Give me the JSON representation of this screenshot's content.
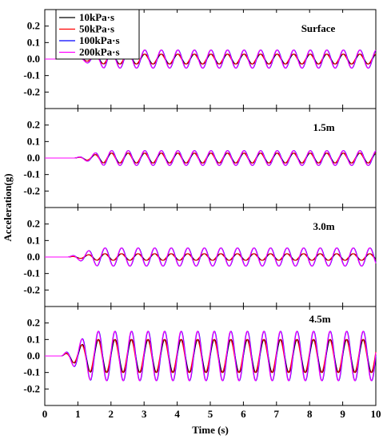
{
  "chart_data": {
    "type": "line",
    "xlabel": "Time (s)",
    "ylabel": "Acceleration(g)",
    "xlim": [
      0,
      10
    ],
    "ylim": [
      -0.3,
      0.3
    ],
    "x_ticks": [
      "0",
      "1",
      "2",
      "3",
      "4",
      "5",
      "6",
      "7",
      "8",
      "9",
      "10"
    ],
    "y_ticks": [
      "0.2",
      "0.1",
      "0.0",
      "-0.1",
      "-0.2"
    ],
    "legend": [
      "10kPa·s",
      "50kPa·s",
      "100kPa·s",
      "200kPa·s"
    ],
    "series_colors": [
      "#000000",
      "#ff0000",
      "#0000ff",
      "#ff00ff"
    ],
    "oscillation_frequency_hz": 2,
    "panels": [
      {
        "label": "Surface",
        "amplitude": [
          0.03,
          0.03,
          0.055,
          0.055
        ],
        "onset_s": [
          0.9,
          0.9,
          0.9,
          0.9
        ]
      },
      {
        "label": "1.5m",
        "amplitude": [
          0.03,
          0.03,
          0.045,
          0.045
        ],
        "onset_s": [
          0.9,
          0.9,
          0.9,
          0.9
        ]
      },
      {
        "label": "3.0m",
        "amplitude": [
          0.02,
          0.02,
          0.055,
          0.055
        ],
        "onset_s": [
          0.7,
          0.7,
          0.7,
          0.7
        ]
      },
      {
        "label": "4.5m",
        "amplitude": [
          0.1,
          0.1,
          0.15,
          0.15
        ],
        "onset_s": [
          0.5,
          0.5,
          0.5,
          0.5
        ]
      }
    ]
  }
}
